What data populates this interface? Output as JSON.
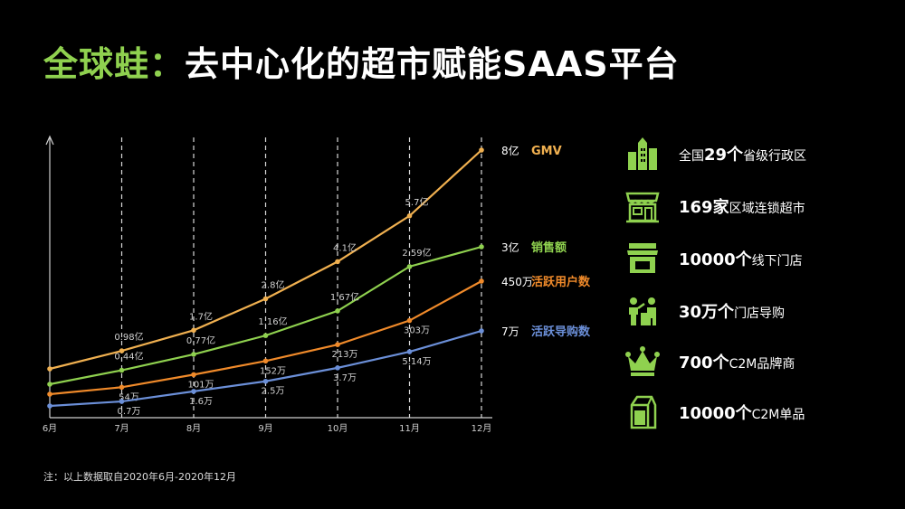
{
  "title": {
    "brand": "全球蛙：",
    "rest": "去中心化的超市赋能SAAS平台"
  },
  "footnote": "注：以上数据取自2020年6月-2020年12月",
  "chart_data": {
    "type": "line",
    "categories": [
      "6月",
      "7月",
      "8月",
      "9月",
      "10月",
      "11月",
      "12月"
    ],
    "grid": "vertical-dashed",
    "series": [
      {
        "name": "GMV",
        "color": "#f0b050",
        "end_label": "8亿",
        "values": [
          0.35,
          0.98,
          1.7,
          2.8,
          4.1,
          5.7,
          8
        ],
        "labels": [
          "",
          "0.98亿",
          "1.7亿",
          "2.8亿",
          "4.1亿",
          "5.7亿",
          ""
        ]
      },
      {
        "name": "销售额",
        "color": "#8fd14f",
        "end_label": "3亿",
        "values": [
          0.15,
          0.44,
          0.77,
          1.16,
          1.67,
          2.59,
          3
        ],
        "labels": [
          "",
          "0.44亿",
          "0.77亿",
          "1.16亿",
          "1.67亿",
          "2.59亿",
          ""
        ]
      },
      {
        "name": "活跃用户数",
        "color": "#f08a2a",
        "end_label": "450万",
        "values": [
          28,
          54,
          101,
          152,
          213,
          303,
          450
        ],
        "labels": [
          "",
          "54万",
          "101万",
          "152万",
          "213万",
          "303万",
          ""
        ]
      },
      {
        "name": "活跃导购数",
        "color": "#6b8fd8",
        "end_label": "7万",
        "values": [
          0.3,
          0.7,
          1.6,
          2.5,
          3.7,
          5.14,
          7
        ],
        "labels": [
          "",
          "0.7万",
          "1.6万",
          "2.5万",
          "3.7万",
          "5.14万",
          ""
        ]
      }
    ]
  },
  "stats": [
    {
      "icon": "buildings-icon",
      "prefix": "全国",
      "num": "29个",
      "label": "省级行政区"
    },
    {
      "icon": "supermarket-icon",
      "prefix": "",
      "num": "169家",
      "label": "区域连锁超市"
    },
    {
      "icon": "store-icon",
      "prefix": "",
      "num": "10000个",
      "label": "线下门店"
    },
    {
      "icon": "shopping-guide-icon",
      "prefix": "",
      "num": "30万个",
      "label": "门店导购"
    },
    {
      "icon": "crown-icon",
      "prefix": "",
      "num": "700个",
      "label": "C2M品牌商"
    },
    {
      "icon": "milk-carton-icon",
      "prefix": "",
      "num": "10000个",
      "label": "C2M单品"
    }
  ],
  "colors": {
    "accent": "#8fd14f",
    "background": "#000000"
  }
}
